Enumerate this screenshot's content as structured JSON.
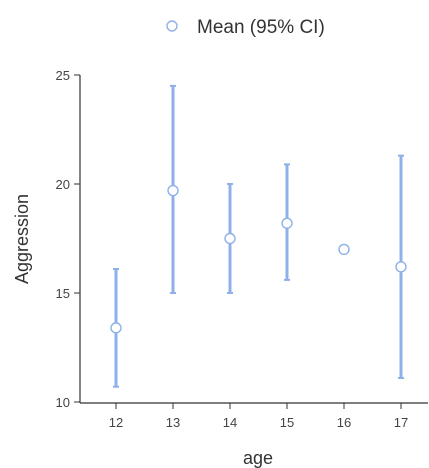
{
  "chart_data": {
    "type": "scatter",
    "xlabel": "age",
    "ylabel": "Aggression",
    "categories": [
      "12",
      "13",
      "14",
      "15",
      "16",
      "17"
    ],
    "ylim": [
      10,
      25
    ],
    "yticks": [
      "10",
      "15",
      "20",
      "25"
    ],
    "grid": false,
    "legend_position": "top",
    "series": [
      {
        "name": "Mean (95% CI)",
        "values": [
          13.4,
          19.7,
          17.5,
          18.2,
          17.0,
          16.2
        ],
        "ci_lower": [
          10.7,
          15.0,
          15.0,
          15.6,
          null,
          11.1
        ],
        "ci_upper": [
          16.1,
          24.5,
          20.0,
          20.9,
          null,
          21.3
        ]
      }
    ],
    "colors": {
      "series": "#8fb0e8",
      "marker_fill": "#ffffff"
    }
  }
}
